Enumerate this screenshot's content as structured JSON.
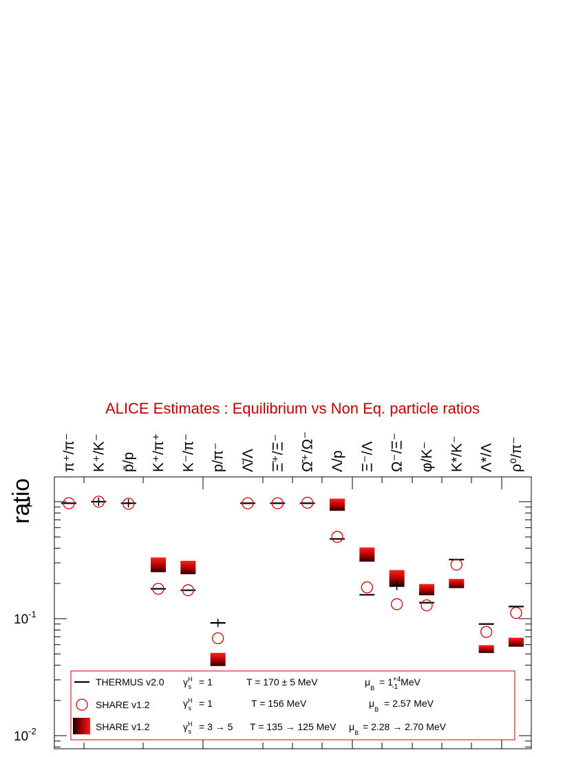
{
  "chart_data": {
    "type": "scatter",
    "title": "ALICE Estimates :  Equilibrium vs Non Eq. particle ratios",
    "ylabel": "ratio",
    "yscale": "log",
    "ylim": [
      0.0085,
      1.6
    ],
    "yticks": [
      {
        "value": 1,
        "label": "1",
        "sup": ""
      },
      {
        "value": 0.1,
        "label": "10",
        "sup": "-1"
      },
      {
        "value": 0.01,
        "label": "10",
        "sup": "-2"
      }
    ],
    "categories": [
      {
        "text": "π⁺/π⁻"
      },
      {
        "text": "K⁺/K⁻"
      },
      {
        "text": "p̄/p"
      },
      {
        "text": "K⁺/π⁺"
      },
      {
        "text": "K⁻/π⁻"
      },
      {
        "text": "p/π⁻"
      },
      {
        "text": "Λ̄/Λ"
      },
      {
        "text": "Ξ̄⁺/Ξ⁻"
      },
      {
        "text": "Ω̄⁺/Ω⁻"
      },
      {
        "text": "Λ/p"
      },
      {
        "text": "Ξ⁻/Λ"
      },
      {
        "text": "Ω⁻/Ξ⁻"
      },
      {
        "text": "φ/K⁻"
      },
      {
        "text": "K*/K⁻"
      },
      {
        "text": "Λ*/Λ"
      },
      {
        "text": "ρ⁰/π⁻"
      }
    ],
    "series": [
      {
        "name": "THERMUS v2.0",
        "values": [
          0.97,
          1.0,
          0.97,
          0.18,
          0.175,
          0.092,
          0.97,
          0.97,
          0.97,
          0.48,
          0.16,
          0.19,
          0.137,
          0.32,
          0.09,
          0.127
        ]
      },
      {
        "name": "SHARE v1.2",
        "values": [
          0.97,
          1.0,
          0.96,
          0.18,
          0.175,
          0.068,
          0.97,
          0.97,
          0.98,
          0.5,
          0.185,
          0.133,
          0.13,
          0.29,
          0.077,
          0.112
        ]
      },
      {
        "name": "SHARE v1.2",
        "ranges": [
          null,
          null,
          null,
          [
            0.26,
            0.32
          ],
          [
            0.25,
            0.3
          ],
          [
            0.041,
            0.049
          ],
          null,
          null,
          null,
          [
            0.87,
            1.02
          ],
          [
            0.32,
            0.39
          ],
          [
            0.2,
            0.25
          ],
          [
            0.165,
            0.19
          ],
          [
            0.19,
            0.21
          ],
          [
            0.053,
            0.057
          ],
          [
            0.06,
            0.066
          ]
        ]
      }
    ],
    "legend": {
      "position": "bottom",
      "rows": [
        {
          "label": "THERMUS v2.0",
          "gamma": "= 1",
          "T": "T = 170 ± 5 MeV",
          "mu": "= 1",
          "mu_sup": "+4",
          "mu_sub": "-1",
          "mu_unit": "MeV"
        },
        {
          "label": "SHARE v1.2",
          "gamma": "= 1",
          "T": "T = 156 MeV",
          "mu": "= 2.57 MeV"
        },
        {
          "label": "SHARE v1.2",
          "gamma": "= 3 → 5",
          "T": "T = 135 → 125 MeV",
          "mu": "= 2.28 → 2.70 MeV"
        }
      ]
    },
    "colors": {
      "axis": "#000000",
      "title": "#c00000",
      "circle": "#d00000",
      "legend_border": "#c00000",
      "box_dark": "#1a0000",
      "box_light": "#ff1a1a"
    }
  }
}
